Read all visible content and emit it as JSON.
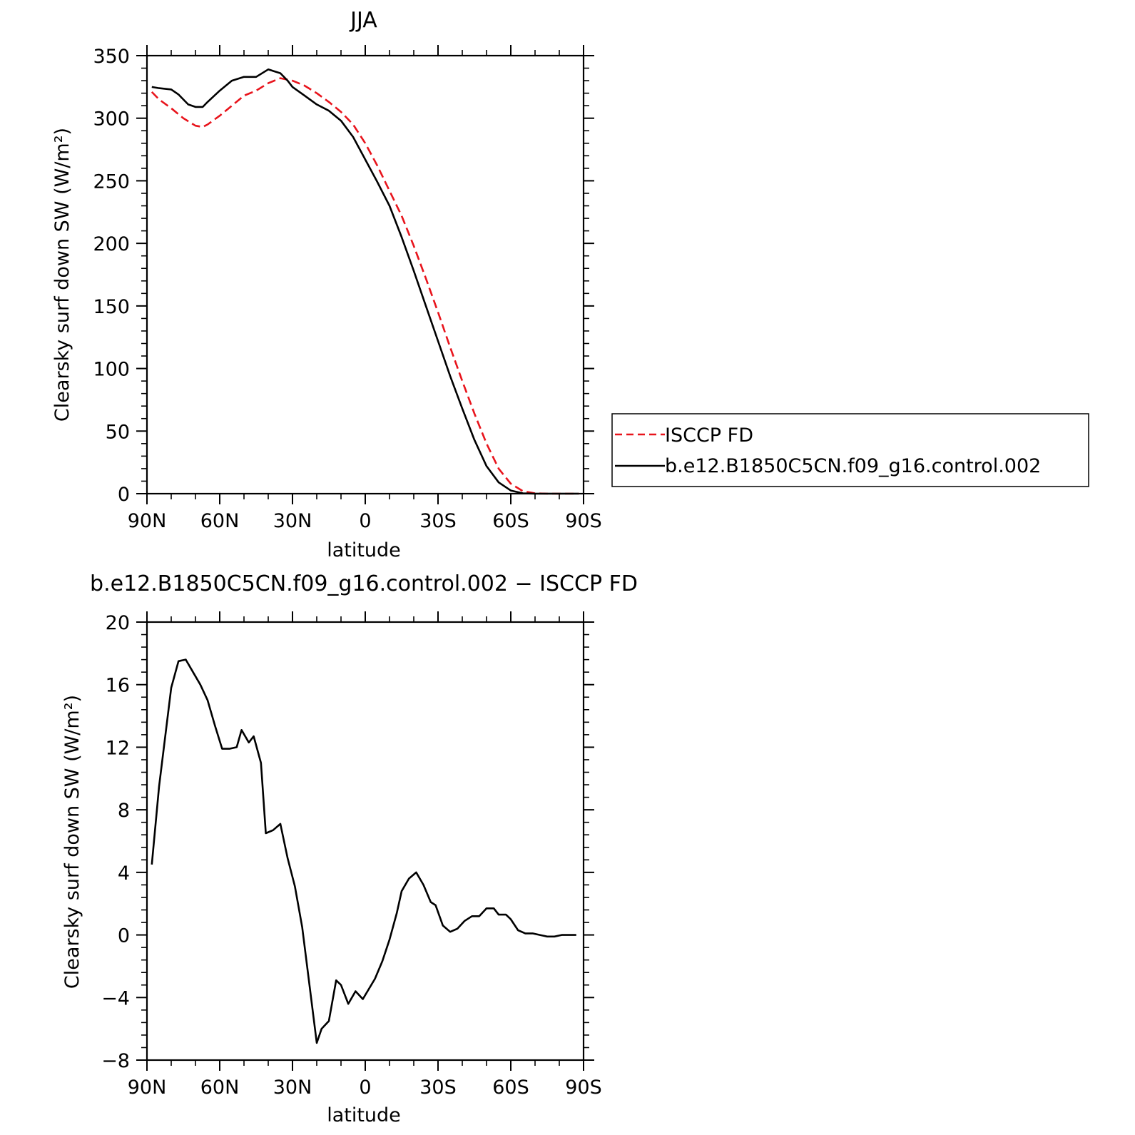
{
  "chart_data": [
    {
      "type": "line",
      "title": "JJA",
      "xlabel": "latitude",
      "ylabel": "Clearsky surf down SW (W/m²)",
      "x_tick_labels": [
        "90N",
        "60N",
        "30N",
        "0",
        "30S",
        "60S",
        "90S"
      ],
      "x_tick_values": [
        90,
        60,
        30,
        0,
        -30,
        -60,
        -90
      ],
      "xlim": [
        90,
        -90
      ],
      "ylim": [
        0,
        350
      ],
      "y_ticks": [
        0,
        50,
        100,
        150,
        200,
        250,
        300,
        350
      ],
      "grid": false,
      "legend_position": "right",
      "series": [
        {
          "name": "ISCCP FD",
          "color": "#e8141c",
          "dash": "dashed",
          "x": [
            88,
            85,
            80,
            75,
            70,
            67,
            65,
            60,
            55,
            50,
            45,
            40,
            35,
            30,
            25,
            20,
            15,
            10,
            5,
            0,
            -5,
            -10,
            -15,
            -20,
            -25,
            -30,
            -35,
            -40,
            -45,
            -50,
            -55,
            -60,
            -65,
            -70,
            -75,
            -80,
            -85,
            -88
          ],
          "values": [
            321,
            315,
            308,
            300,
            294,
            293,
            295,
            302,
            310,
            318,
            322,
            328,
            332,
            330,
            326,
            320,
            313,
            305,
            295,
            280,
            262,
            242,
            222,
            198,
            172,
            145,
            117,
            90,
            64,
            40,
            20,
            8,
            2,
            0.3,
            0,
            0,
            0,
            0
          ]
        },
        {
          "name": "b.e12.B1850C5CN.f09_g16.control.002",
          "color": "#000000",
          "dash": "solid",
          "x": [
            88,
            85,
            80,
            77,
            73,
            70,
            67,
            65,
            60,
            55,
            50,
            45,
            40,
            35,
            32,
            30,
            25,
            20,
            15,
            10,
            5,
            0,
            -5,
            -10,
            -15,
            -20,
            -25,
            -30,
            -35,
            -40,
            -45,
            -50,
            -55,
            -60,
            -65,
            -70,
            -75,
            -80,
            -85,
            -88
          ],
          "values": [
            325,
            324,
            323,
            319,
            311,
            309,
            309,
            313,
            322,
            330,
            333,
            333,
            339,
            336,
            330,
            325,
            318,
            311,
            306,
            298,
            285,
            267,
            249,
            230,
            205,
            178,
            150,
            122,
            94,
            68,
            43,
            22,
            9,
            2.5,
            0.3,
            0,
            0,
            0,
            0,
            0
          ]
        }
      ]
    },
    {
      "type": "line",
      "title": "b.e12.B1850C5CN.f09_g16.control.002 − ISCCP FD",
      "xlabel": "latitude",
      "ylabel": "Clearsky surf down SW (W/m²)",
      "x_tick_labels": [
        "90N",
        "60N",
        "30N",
        "0",
        "30S",
        "60S",
        "90S"
      ],
      "x_tick_values": [
        90,
        60,
        30,
        0,
        -30,
        -60,
        -90
      ],
      "xlim": [
        90,
        -90
      ],
      "ylim": [
        -8,
        20
      ],
      "y_ticks": [
        -8,
        -4,
        0,
        4,
        8,
        12,
        16,
        20
      ],
      "y_tick_labels": [
        "−8",
        "−4",
        "0",
        "4",
        "8",
        "12",
        "16",
        "20"
      ],
      "grid": false,
      "series": [
        {
          "color": "#000000",
          "dash": "solid",
          "x": [
            88,
            85,
            80,
            77,
            74,
            71,
            68,
            65,
            62,
            59,
            56,
            53,
            51,
            48,
            46,
            43,
            41,
            38,
            35,
            32,
            29,
            26,
            23,
            20,
            18,
            15,
            12,
            10,
            7,
            4,
            1,
            -4,
            -7,
            -10,
            -13,
            -15,
            -18,
            -21,
            -24,
            -27,
            -29,
            -32,
            -35,
            -38,
            -41,
            -44,
            -47,
            -50,
            -53,
            -55,
            -58,
            -60,
            -63,
            -66,
            -69,
            -72,
            -75,
            -78,
            -81,
            -84,
            -87
          ],
          "values": [
            4.5,
            9.5,
            15.8,
            17.5,
            17.6,
            16.8,
            16.0,
            15.0,
            13.4,
            11.9,
            11.9,
            12.0,
            13.1,
            12.3,
            12.7,
            11.0,
            6.5,
            6.7,
            7.1,
            4.9,
            3.1,
            0.5,
            -3.2,
            -6.9,
            -6.0,
            -5.5,
            -2.9,
            -3.2,
            -4.4,
            -3.6,
            -4.1,
            -2.8,
            -1.7,
            -0.3,
            1.4,
            2.8,
            3.6,
            4.0,
            3.2,
            2.1,
            1.9,
            0.6,
            0.2,
            0.4,
            0.9,
            1.2,
            1.2,
            1.7,
            1.7,
            1.3,
            1.3,
            1.0,
            0.3,
            0.1,
            0.1,
            0.0,
            -0.1,
            -0.1,
            0.0,
            0.0,
            0.0
          ]
        }
      ]
    }
  ]
}
